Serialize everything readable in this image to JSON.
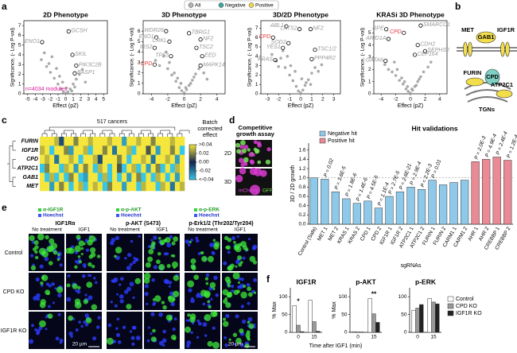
{
  "panel_labels": [
    "a",
    "b",
    "c",
    "d",
    "e",
    "f"
  ],
  "legend": [
    {
      "name": "All",
      "color": "#b3b3b3"
    },
    {
      "name": "Negative",
      "color": "#3aa8a0"
    },
    {
      "name": "Positive",
      "color": "#f0d64a"
    }
  ],
  "diagram": {
    "nodes": [
      "MET",
      "GAB1",
      "IGF1R",
      "FURIN",
      "CPD",
      "ATP2C1",
      "TGNs"
    ]
  },
  "assay": {
    "title": "Competitive growth assay",
    "rows": [
      "2D",
      "3D"
    ],
    "channels": [
      "mCherry",
      "GFP"
    ]
  },
  "microscopy": {
    "stains": [
      {
        "channels": [
          "α-IGF1R",
          "Hoechst"
        ],
        "title": "IGF1Rα"
      },
      {
        "channels": [
          "α-p-AKT",
          "Hoechst"
        ],
        "title": "p-AKT (S473)"
      },
      {
        "channels": [
          "α-p-ERK",
          "Hoechst"
        ],
        "title": "p-Erk1/2 (Thr202/Tyr204)"
      }
    ],
    "conditions": [
      "No treatment",
      "IGF1"
    ],
    "rows": [
      "Control",
      "CPD KO",
      "IGF1R KO"
    ],
    "scale": "20 µm"
  },
  "chart_data": [
    {
      "type": "scatter",
      "title": "2D Phenotype",
      "xlabel": "Effect (pZ)",
      "ylabel": "Significance, (- Log P-val)",
      "xlim": [
        -5.5,
        5.5
      ],
      "ylim": [
        0,
        7.5
      ],
      "xticks": [
        -5,
        -4,
        -3,
        -2,
        -1,
        0,
        1,
        2,
        3,
        4,
        5
      ],
      "yticks": [
        0,
        1,
        2,
        3,
        4,
        5,
        6,
        7
      ],
      "points": {
        "color": "#9a9a9a",
        "x": [
          -3.2,
          -2.5,
          -2,
          -1.5,
          -1,
          -0.6,
          -0.3,
          0,
          0.3,
          0.6,
          1,
          1.4,
          1.8,
          2.2,
          -1.8,
          -2.8,
          0.8,
          -0.8,
          1.2,
          2.6,
          -1.2,
          -2.2,
          0.1,
          -0.4
        ],
        "y": [
          3.5,
          2.8,
          2.2,
          1.6,
          1.0,
          0.5,
          0.2,
          0.05,
          0.2,
          0.5,
          1.0,
          1.5,
          2.0,
          2.5,
          3.8,
          4.2,
          0.3,
          1.8,
          0.7,
          1.2,
          2.6,
          3.1,
          0.6,
          1.2
        ]
      },
      "genes": {
        "labels": [
          "GCSH",
          "ENO1",
          "SKIL",
          "PIK3C2B",
          "BASP1"
        ],
        "x": [
          0.4,
          -3.1,
          0.9,
          1.4,
          1.2
        ],
        "y": [
          6.4,
          5.3,
          4.0,
          2.9,
          2.1
        ],
        "colors": [
          "#999999",
          "#999999",
          "#999999",
          "#999999",
          "#999999"
        ]
      },
      "annotation": {
        "text": "n=4034 modules",
        "color": "#e0189a"
      }
    },
    {
      "type": "scatter",
      "title": "3D Phenotype",
      "xlabel": "Effect (pZ)",
      "ylabel": "Significance, (- Log P-val)",
      "xlim": [
        -5,
        5
      ],
      "ylim": [
        0,
        7
      ],
      "xticks": [
        -4,
        -2,
        0,
        2,
        4
      ],
      "yticks": [
        0,
        1,
        2,
        3,
        4,
        5,
        6
      ],
      "points": {
        "color": "#9a9a9a",
        "x": [
          -3.5,
          -3,
          -2.5,
          -2,
          -1.5,
          -1,
          -0.6,
          -0.3,
          0,
          0.3,
          0.6,
          1,
          1.4,
          1.8,
          -2.2,
          -1.2,
          0.8,
          -0.8,
          1.2,
          2.4,
          -1.8,
          0.2,
          -0.4,
          2.8
        ],
        "y": [
          3.2,
          2.7,
          3.6,
          2.4,
          1.8,
          1.2,
          0.6,
          0.3,
          0.1,
          0.4,
          0.8,
          1.3,
          1.9,
          2.4,
          4.0,
          2.0,
          1.0,
          1.5,
          1.6,
          2.0,
          3.0,
          0.6,
          1.0,
          1.4
        ]
      },
      "genes": {
        "labels": [
          "WDR26",
          "TBRG1",
          "ENO1",
          "CRKL",
          "NF2",
          "IRS2",
          "TSC2",
          "TP53",
          "EED",
          "CPD",
          "MAPK14"
        ],
        "x": [
          -2.2,
          0.6,
          -3.4,
          -1.8,
          2.0,
          -3.6,
          1.5,
          -1.6,
          2.2,
          -3.6,
          2.0
        ],
        "y": [
          6.0,
          5.8,
          5.4,
          5.0,
          5.2,
          4.4,
          4.4,
          3.6,
          3.6,
          2.8,
          2.7
        ],
        "colors": [
          "#999999",
          "#999999",
          "#999999",
          "#999999",
          "#999999",
          "#999999",
          "#999999",
          "#999999",
          "#999999",
          "#e8363b",
          "#999999"
        ]
      }
    },
    {
      "type": "scatter",
      "title": "3D/2D Phenotype",
      "xlabel": "Effect (pZ)",
      "ylabel": "Significance, (- Log P-val)",
      "xlim": [
        -3.6,
        3.6
      ],
      "ylim": [
        0,
        7.8
      ],
      "xticks": [
        -3,
        -2,
        -1,
        0,
        1,
        2,
        3
      ],
      "yticks": [
        0,
        1,
        2,
        3,
        4,
        5,
        6,
        7
      ],
      "points": {
        "color": "#9a9a9a",
        "x": [
          -2.6,
          -2.2,
          -1.8,
          -1.4,
          -1,
          -0.7,
          -0.4,
          -0.2,
          0,
          0.2,
          0.4,
          0.7,
          1,
          1.3,
          -1.6,
          -0.9,
          0.5,
          -0.5,
          0.9,
          1.6,
          -2,
          -1.2,
          0.1,
          1.9
        ],
        "y": [
          4.2,
          3.5,
          3.8,
          2.8,
          2.0,
          1.4,
          0.8,
          0.3,
          0.1,
          0.4,
          0.9,
          1.5,
          2.2,
          2.8,
          4.6,
          3.0,
          1.2,
          2.4,
          1.0,
          2.4,
          2.9,
          4.0,
          1.6,
          3.1
        ]
      },
      "genes": {
        "labels": [
          "ABL1",
          "LATS2",
          "NF2",
          "CPD",
          "SOD2",
          "YES1",
          "TSC1/2",
          "PPP4R2",
          "KRAS"
        ],
        "x": [
          -1.3,
          -0.1,
          0.9,
          -2.5,
          -1.1,
          -1.6,
          1.3,
          1.0,
          -2.3
        ],
        "y": [
          7.2,
          6.9,
          6.9,
          6.0,
          5.4,
          4.9,
          4.7,
          3.7,
          3.6
        ],
        "colors": [
          "#999999",
          "#999999",
          "#999999",
          "#e8363b",
          "#999999",
          "#999999",
          "#999999",
          "#999999",
          "#999999"
        ]
      }
    },
    {
      "type": "scatter",
      "title": "KRASi 3D Phenotype",
      "xlabel": "Effect (pZ)",
      "ylabel": "Significance, (- Log P-val)",
      "xlim": [
        -5,
        5
      ],
      "ylim": [
        0,
        6
      ],
      "xticks": [
        -4,
        -2,
        0,
        2,
        4
      ],
      "yticks": [
        0,
        1,
        2,
        3,
        4,
        5
      ],
      "points": {
        "color": "#9a9a9a",
        "x": [
          -3.5,
          -3,
          -2.5,
          -2,
          -1.5,
          -1,
          -0.6,
          -0.3,
          0,
          0.3,
          0.6,
          1,
          1.4,
          1.8,
          -2.2,
          -1.2,
          0.8,
          -0.8,
          1.2,
          2.4,
          -1.8,
          0.2,
          -0.4,
          2.8
        ],
        "y": [
          2.4,
          2.0,
          1.8,
          1.5,
          1.1,
          0.8,
          0.4,
          0.2,
          0.05,
          0.3,
          0.6,
          1.0,
          1.4,
          1.8,
          2.6,
          1.3,
          0.7,
          1.0,
          1.2,
          2.2,
          2.0,
          0.4,
          0.6,
          2.6
        ]
      },
      "genes": {
        "labels": [
          "RPE",
          "ARID1A",
          "CPD",
          "SMARCC1",
          "CDH2",
          "CEP164",
          "SEPHS2",
          "GATA6"
        ],
        "x": [
          -3.3,
          -3.0,
          -0.9,
          1.4,
          1.0,
          0.6,
          2.0,
          -3.4
        ],
        "y": [
          5.3,
          4.5,
          5.0,
          5.6,
          4.0,
          3.2,
          3.5,
          2.7
        ],
        "colors": [
          "#999999",
          "#999999",
          "#e8363b",
          "#999999",
          "#999999",
          "#999999",
          "#999999",
          "#999999"
        ]
      }
    },
    {
      "type": "heatmap",
      "title": "517 cancers",
      "rows": [
        "FURIN",
        "IGF1R",
        "CPD",
        "ATP2C1",
        "GAB1",
        "MET"
      ],
      "values": [
        [
          0.05,
          0.04,
          0.05,
          0.03,
          -0.01,
          0.04,
          0.05,
          0.02,
          0.04,
          0.05,
          0.03,
          0.05,
          0.04,
          0.05,
          0.03,
          0.05,
          0.04,
          -0.03,
          0.05,
          0.04,
          0.03,
          0.05,
          0.04,
          0.02,
          0.05,
          0.04,
          0.05,
          0.03,
          0.04,
          0.05
        ],
        [
          0.03,
          0.05,
          -0.04,
          0.04,
          0.05,
          0.02,
          -0.03,
          0.05,
          0.04,
          0.03,
          -0.05,
          0.04,
          0.05,
          0.02,
          0.04,
          -0.02,
          0.05,
          0.04,
          0.03,
          -0.04,
          0.05,
          0.04,
          0.01,
          0.05,
          -0.03,
          0.04,
          0.05,
          0.02,
          0.04,
          -0.05
        ],
        [
          0.04,
          0.03,
          0.05,
          -0.02,
          0.04,
          0.05,
          0.03,
          0.04,
          -0.05,
          0.04,
          0.05,
          0.03,
          -0.01,
          0.04,
          0.05,
          0.04,
          0.02,
          0.05,
          -0.04,
          0.04,
          0.05,
          0.03,
          0.04,
          -0.02,
          0.05,
          0.04,
          0.03,
          0.05,
          -0.03,
          0.04
        ],
        [
          -0.04,
          0.02,
          0.04,
          0.05,
          -0.05,
          0.03,
          0.04,
          -0.03,
          0.05,
          0.02,
          0.04,
          -0.05,
          0.03,
          0.05,
          -0.04,
          0.04,
          0.01,
          -0.05,
          0.04,
          0.03,
          -0.04,
          0.05,
          -0.03,
          0.04,
          0.02,
          -0.05,
          0.04,
          -0.04,
          0.03,
          0.05
        ],
        [
          0.05,
          -0.05,
          0.03,
          -0.04,
          0.04,
          -0.05,
          0.02,
          0.05,
          -0.04,
          -0.03,
          0.04,
          0.05,
          -0.05,
          0.03,
          -0.04,
          0.05,
          -0.05,
          0.04,
          -0.03,
          0.05,
          0.02,
          -0.05,
          0.04,
          -0.04,
          0.03,
          0.05,
          -0.05,
          0.04,
          -0.03,
          0.05
        ],
        [
          0.04,
          0.05,
          -0.03,
          0.04,
          0.02,
          0.05,
          -0.05,
          0.04,
          0.03,
          -0.04,
          0.05,
          0.03,
          0.04,
          -0.05,
          0.02,
          0.04,
          0.05,
          -0.03,
          0.04,
          0.05,
          -0.05,
          0.03,
          0.04,
          0.05,
          -0.04,
          0.03,
          0.05,
          -0.02,
          0.04,
          0.03
        ]
      ],
      "zlim": [
        -0.04,
        0.04
      ],
      "colors": [
        "#38c6e6",
        "#14254f",
        "#f4e63c"
      ],
      "colorbar_title": "Batch corrected effect",
      "colorbar_ticks": [
        {
          "value": 0.04,
          "label": ">0.04"
        },
        0.02,
        {
          "value": 0,
          "label": "0.00"
        },
        -0.02,
        {
          "value": -0.04,
          "label": "<-0.04"
        }
      ]
    },
    {
      "type": "bar",
      "title": "Hit validations",
      "xlabel": "sgRNAs",
      "ylabel": "3D / 2D growth",
      "categories": [
        "Control (Safe)",
        "MET 1",
        "MET 2",
        "KRAS 1",
        "KRAS 2",
        "CPD 1",
        "CPD 2",
        "IGF1R 1",
        "IGF1R 2",
        "ATP2C1 1",
        "ATP2C1 2",
        "FURIN 1",
        "FURIN 2",
        "CARM1 1",
        "CARM1 2",
        "AHR 1",
        "AHR 2",
        "CREBBP 1",
        "CREBBP 2"
      ],
      "series": [
        {
          "name": "Negative hit",
          "color": "#8ec9ea",
          "values": [
            1.0,
            0.97,
            0.7,
            0.55,
            0.45,
            0.5,
            0.35,
            0.6,
            0.7,
            0.8,
            0.75,
            0.95,
            0.85,
            0.9,
            0.95,
            null,
            null,
            null,
            null
          ]
        },
        {
          "name": "Positive hit",
          "color": "#e98a95",
          "values": [
            null,
            null,
            null,
            null,
            null,
            null,
            null,
            null,
            null,
            null,
            null,
            null,
            null,
            null,
            null,
            1.35,
            1.4,
            1.45,
            1.38
          ]
        }
      ],
      "annotations": [
        null,
        "P = 0.02",
        "P = 3.6E-5",
        "P = 1.8E-6",
        "P = 1.4E-6",
        "P = 4.5E-5",
        "P = 1.1E-4",
        "P = 2.7E-5",
        "P = 2.6E-21",
        "P = 2.9E-4",
        "P = 2.2E-3",
        "P = 0.01",
        null,
        null,
        null,
        "P = 2.0E-3",
        "P = 4.9E-4",
        "P = 2.4E-4",
        "P = 1.2E-4"
      ],
      "reference_line": 1,
      "legend": "upper left",
      "ylim": [
        0,
        1.75
      ],
      "yticks": [
        {
          "value": 0,
          "label": "0.0"
        },
        0.2,
        0.4,
        0.6,
        0.8,
        {
          "value": 1,
          "label": "1.0"
        },
        1.2,
        1.4,
        1.6
      ]
    },
    {
      "type": "bar",
      "title": "IGF1R",
      "ylabel": "% Max",
      "xlabel": "Time after IGF1 (min)",
      "categories": [
        "0",
        "15"
      ],
      "series": [
        {
          "color": "#ffffff",
          "values": [
            75,
            90
          ]
        },
        {
          "color": "#999999",
          "values": [
            20,
            30
          ]
        },
        {
          "color": "#222222",
          "values": [
            2,
            3
          ]
        }
      ],
      "significance": [
        "*",
        null
      ],
      "ylim": [
        0,
        125
      ],
      "yticks": [
        0,
        50,
        100
      ]
    },
    {
      "type": "bar",
      "title": "p-AKT",
      "ylabel": "% Max",
      "categories": [
        "0",
        "15"
      ],
      "series": [
        {
          "color": "#ffffff",
          "values": [
            2,
            95
          ]
        },
        {
          "color": "#999999",
          "values": [
            1,
            52
          ]
        },
        {
          "color": "#222222",
          "values": [
            1,
            28
          ]
        }
      ],
      "significance": [
        null,
        "**"
      ],
      "ylim": [
        0,
        125
      ],
      "yticks": [
        0,
        50,
        100
      ]
    },
    {
      "type": "bar",
      "title": "p-ERK",
      "categories": [
        "0",
        "15"
      ],
      "series": [
        {
          "name": "Control",
          "color": "#ffffff",
          "values": [
            62,
            95
          ]
        },
        {
          "name": "CPD KO",
          "color": "#999999",
          "values": [
            68,
            85
          ]
        },
        {
          "name": "IGF1R KO",
          "color": "#222222",
          "values": [
            78,
            80
          ]
        }
      ],
      "legend": "right",
      "ylim": [
        0,
        125
      ],
      "yticks": [
        0,
        50,
        100
      ]
    }
  ]
}
